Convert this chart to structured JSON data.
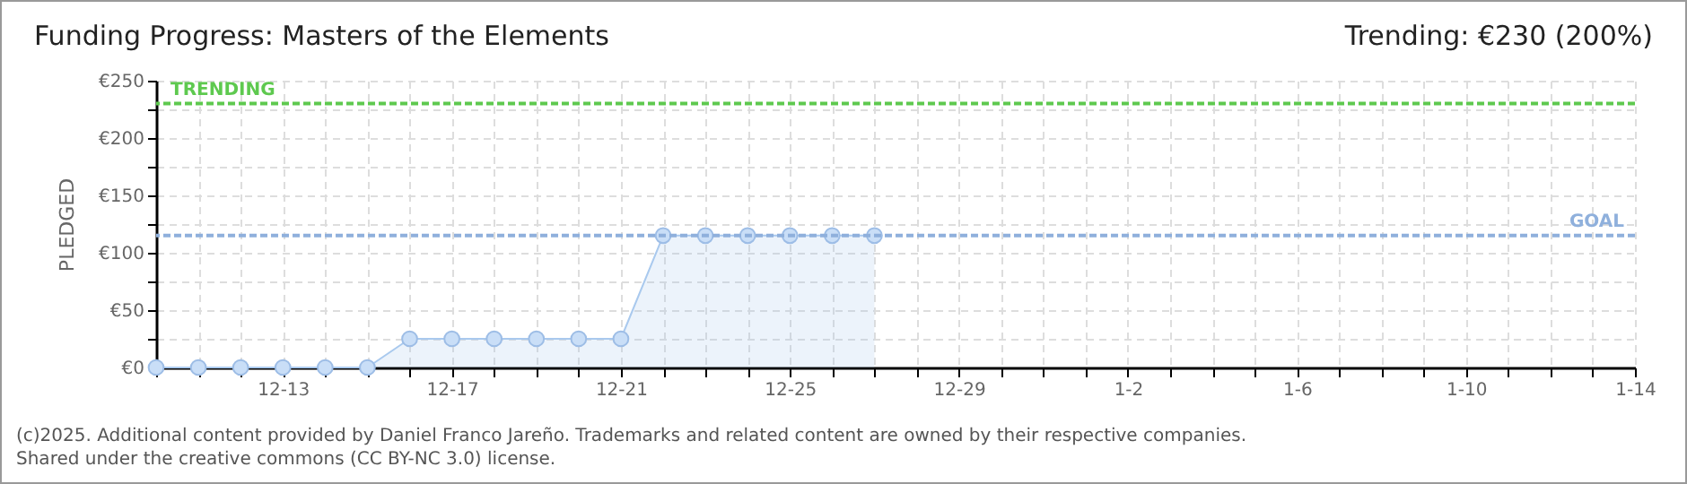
{
  "chart_data": {
    "type": "area",
    "title": "Funding Progress: Masters of the Elements",
    "subtitle": "Trending:  €230 (200%)",
    "ylabel": "PLEDGED",
    "x": [
      "2024-12-10",
      "2024-12-11",
      "2024-12-12",
      "2024-12-13",
      "2024-12-14",
      "2024-12-15",
      "2024-12-16",
      "2024-12-17",
      "2024-12-18",
      "2024-12-19",
      "2024-12-20",
      "2024-12-21",
      "2024-12-22",
      "2024-12-23",
      "2024-12-24",
      "2024-12-25",
      "2024-12-26",
      "2024-12-27"
    ],
    "series": [
      {
        "color": "#a9c9ee",
        "values": [
          0,
          0,
          0,
          0,
          0,
          0,
          25,
          25,
          25,
          25,
          25,
          25,
          115,
          115,
          115,
          115,
          115,
          115
        ]
      }
    ],
    "marker": "circle",
    "grid": true,
    "xlim": [
      "2024-12-10",
      "2025-01-14"
    ],
    "xticks": [
      {
        "value": "2024-12-10",
        "label": null
      },
      {
        "value": "2024-12-11",
        "label": null
      },
      {
        "value": "2024-12-12",
        "label": null
      },
      {
        "value": "2024-12-13",
        "label": "12-13"
      },
      {
        "value": "2024-12-14",
        "label": null
      },
      {
        "value": "2024-12-15",
        "label": null
      },
      {
        "value": "2024-12-16",
        "label": null
      },
      {
        "value": "2024-12-17",
        "label": "12-17"
      },
      {
        "value": "2024-12-18",
        "label": null
      },
      {
        "value": "2024-12-19",
        "label": null
      },
      {
        "value": "2024-12-20",
        "label": null
      },
      {
        "value": "2024-12-21",
        "label": "12-21"
      },
      {
        "value": "2024-12-22",
        "label": null
      },
      {
        "value": "2024-12-23",
        "label": null
      },
      {
        "value": "2024-12-24",
        "label": null
      },
      {
        "value": "2024-12-25",
        "label": "12-25"
      },
      {
        "value": "2024-12-26",
        "label": null
      },
      {
        "value": "2024-12-27",
        "label": null
      },
      {
        "value": "2024-12-28",
        "label": null
      },
      {
        "value": "2024-12-29",
        "label": "12-29"
      },
      {
        "value": "2024-12-30",
        "label": null
      },
      {
        "value": "2024-12-31",
        "label": null
      },
      {
        "value": "2025-01-01",
        "label": null
      },
      {
        "value": "2025-01-02",
        "label": "1-2"
      },
      {
        "value": "2025-01-03",
        "label": null
      },
      {
        "value": "2025-01-04",
        "label": null
      },
      {
        "value": "2025-01-05",
        "label": null
      },
      {
        "value": "2025-01-06",
        "label": "1-6"
      },
      {
        "value": "2025-01-07",
        "label": null
      },
      {
        "value": "2025-01-08",
        "label": null
      },
      {
        "value": "2025-01-09",
        "label": null
      },
      {
        "value": "2025-01-10",
        "label": "1-10"
      },
      {
        "value": "2025-01-11",
        "label": null
      },
      {
        "value": "2025-01-12",
        "label": null
      },
      {
        "value": "2025-01-13",
        "label": null
      },
      {
        "value": "2025-01-14",
        "label": "1-14"
      }
    ],
    "ylim": [
      0,
      250
    ],
    "yticks": [
      {
        "value": 0,
        "label": "€0"
      },
      {
        "value": 25,
        "label": null
      },
      {
        "value": 50,
        "label": "€50"
      },
      {
        "value": 75,
        "label": null
      },
      {
        "value": 100,
        "label": "€100"
      },
      {
        "value": 125,
        "label": null
      },
      {
        "value": 150,
        "label": "€150"
      },
      {
        "value": 175,
        "label": null
      },
      {
        "value": 200,
        "label": "€200"
      },
      {
        "value": 225,
        "label": null
      },
      {
        "value": 250,
        "label": "€250"
      }
    ],
    "ref_lines": [
      {
        "axis": "y",
        "value": 230,
        "label": "TRENDING",
        "color": "#5ec94f",
        "line_style": "dashed"
      },
      {
        "axis": "y",
        "value": 115,
        "label": "GOAL",
        "color": "#8fb0dc",
        "line_style": "dashed"
      }
    ],
    "annotations": [
      "(c)2025. Additional content provided by Daniel Franco Jareño. Trademarks and related content are owned by their respective companies.",
      "Shared under the creative commons (CC BY-NC 3.0) license."
    ]
  }
}
